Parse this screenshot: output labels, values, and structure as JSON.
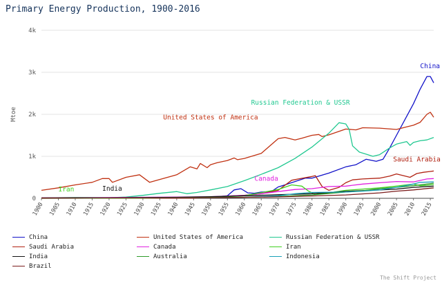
{
  "chart_data": {
    "type": "line",
    "title": "Primary Energy Production, 1900-2016",
    "ylabel": "Mtoe",
    "xlabel": "",
    "xlim": [
      1900,
      2016
    ],
    "ylim": [
      0,
      4000
    ],
    "yticks": [
      0,
      1000,
      2000,
      3000,
      4000
    ],
    "ytick_labels": [
      "0",
      "1k",
      "2k",
      "3k",
      "4k"
    ],
    "xticks": [
      1900,
      1905,
      1910,
      1915,
      1920,
      1925,
      1930,
      1935,
      1940,
      1945,
      1950,
      1955,
      1960,
      1965,
      1970,
      1975,
      1980,
      1985,
      1990,
      1995,
      2000,
      2005,
      2010,
      2015
    ],
    "xtick_labels": [
      "1900",
      "1905",
      "1910",
      "1915",
      "1920",
      "1925",
      "1930",
      "1935",
      "1940",
      "1945",
      "1950",
      "1955",
      "1960",
      "1965",
      "1970",
      "1975",
      "1980",
      "1985",
      "1990",
      "1995",
      "2000",
      "2005",
      "2010",
      "2015"
    ],
    "grid": true,
    "credit": "The Shift Project",
    "series": [
      {
        "name": "China",
        "color": "#1010c8",
        "points": [
          [
            1900,
            5
          ],
          [
            1950,
            20
          ],
          [
            1955,
            60
          ],
          [
            1957,
            200
          ],
          [
            1959,
            230
          ],
          [
            1961,
            130
          ],
          [
            1963,
            120
          ],
          [
            1965,
            150
          ],
          [
            1968,
            160
          ],
          [
            1970,
            270
          ],
          [
            1972,
            320
          ],
          [
            1975,
            400
          ],
          [
            1978,
            480
          ],
          [
            1980,
            480
          ],
          [
            1985,
            600
          ],
          [
            1990,
            750
          ],
          [
            1993,
            800
          ],
          [
            1996,
            930
          ],
          [
            1999,
            880
          ],
          [
            2001,
            930
          ],
          [
            2003,
            1200
          ],
          [
            2005,
            1500
          ],
          [
            2008,
            1950
          ],
          [
            2010,
            2250
          ],
          [
            2012,
            2600
          ],
          [
            2014,
            2900
          ],
          [
            2015,
            2900
          ],
          [
            2016,
            2750
          ]
        ]
      },
      {
        "name": "United States of America",
        "color": "#c03010",
        "points": [
          [
            1900,
            190
          ],
          [
            1905,
            250
          ],
          [
            1910,
            320
          ],
          [
            1915,
            380
          ],
          [
            1918,
            470
          ],
          [
            1920,
            470
          ],
          [
            1921,
            380
          ],
          [
            1925,
            500
          ],
          [
            1929,
            560
          ],
          [
            1932,
            380
          ],
          [
            1935,
            450
          ],
          [
            1940,
            560
          ],
          [
            1944,
            750
          ],
          [
            1946,
            700
          ],
          [
            1947,
            830
          ],
          [
            1949,
            730
          ],
          [
            1950,
            800
          ],
          [
            1952,
            850
          ],
          [
            1955,
            900
          ],
          [
            1957,
            960
          ],
          [
            1958,
            920
          ],
          [
            1960,
            950
          ],
          [
            1965,
            1070
          ],
          [
            1970,
            1420
          ],
          [
            1972,
            1450
          ],
          [
            1975,
            1390
          ],
          [
            1977,
            1430
          ],
          [
            1980,
            1500
          ],
          [
            1982,
            1520
          ],
          [
            1983,
            1470
          ],
          [
            1985,
            1510
          ],
          [
            1990,
            1650
          ],
          [
            1993,
            1630
          ],
          [
            1995,
            1680
          ],
          [
            2000,
            1670
          ],
          [
            2005,
            1640
          ],
          [
            2008,
            1700
          ],
          [
            2010,
            1740
          ],
          [
            2012,
            1810
          ],
          [
            2014,
            2000
          ],
          [
            2015,
            2050
          ],
          [
            2016,
            1930
          ]
        ]
      },
      {
        "name": "Russian Federation & USSR",
        "color": "#20c890",
        "points": [
          [
            1900,
            10
          ],
          [
            1910,
            20
          ],
          [
            1920,
            15
          ],
          [
            1925,
            30
          ],
          [
            1930,
            70
          ],
          [
            1935,
            120
          ],
          [
            1940,
            160
          ],
          [
            1943,
            110
          ],
          [
            1946,
            140
          ],
          [
            1950,
            200
          ],
          [
            1955,
            280
          ],
          [
            1960,
            420
          ],
          [
            1965,
            570
          ],
          [
            1970,
            730
          ],
          [
            1975,
            950
          ],
          [
            1980,
            1220
          ],
          [
            1985,
            1550
          ],
          [
            1988,
            1800
          ],
          [
            1990,
            1770
          ],
          [
            1991,
            1640
          ],
          [
            1992,
            1250
          ],
          [
            1994,
            1100
          ],
          [
            1996,
            1050
          ],
          [
            1998,
            1000
          ],
          [
            2000,
            1040
          ],
          [
            2003,
            1200
          ],
          [
            2005,
            1290
          ],
          [
            2008,
            1350
          ],
          [
            2009,
            1260
          ],
          [
            2010,
            1330
          ],
          [
            2012,
            1370
          ],
          [
            2014,
            1390
          ],
          [
            2016,
            1450
          ]
        ]
      },
      {
        "name": "Saudi Arabia",
        "color": "#b02010",
        "points": [
          [
            1900,
            0
          ],
          [
            1945,
            5
          ],
          [
            1950,
            30
          ],
          [
            1955,
            50
          ],
          [
            1960,
            70
          ],
          [
            1965,
            110
          ],
          [
            1970,
            190
          ],
          [
            1974,
            430
          ],
          [
            1976,
            460
          ],
          [
            1980,
            520
          ],
          [
            1981,
            540
          ],
          [
            1983,
            280
          ],
          [
            1985,
            190
          ],
          [
            1988,
            260
          ],
          [
            1990,
            370
          ],
          [
            1992,
            440
          ],
          [
            1995,
            460
          ],
          [
            2000,
            480
          ],
          [
            2003,
            530
          ],
          [
            2005,
            580
          ],
          [
            2009,
            500
          ],
          [
            2011,
            590
          ],
          [
            2013,
            620
          ],
          [
            2015,
            640
          ],
          [
            2016,
            650
          ]
        ]
      },
      {
        "name": "Canada",
        "color": "#e020e0",
        "points": [
          [
            1900,
            10
          ],
          [
            1920,
            20
          ],
          [
            1940,
            30
          ],
          [
            1950,
            40
          ],
          [
            1960,
            70
          ],
          [
            1965,
            110
          ],
          [
            1970,
            160
          ],
          [
            1975,
            210
          ],
          [
            1980,
            230
          ],
          [
            1985,
            280
          ],
          [
            1990,
            290
          ],
          [
            1995,
            340
          ],
          [
            2000,
            370
          ],
          [
            2005,
            400
          ],
          [
            2010,
            390
          ],
          [
            2014,
            460
          ],
          [
            2016,
            470
          ]
        ]
      },
      {
        "name": "Iran",
        "color": "#40d020",
        "points": [
          [
            1900,
            0
          ],
          [
            1930,
            5
          ],
          [
            1950,
            20
          ],
          [
            1960,
            60
          ],
          [
            1970,
            210
          ],
          [
            1974,
            320
          ],
          [
            1977,
            290
          ],
          [
            1979,
            170
          ],
          [
            1981,
            90
          ],
          [
            1985,
            130
          ],
          [
            1990,
            190
          ],
          [
            1995,
            220
          ],
          [
            2000,
            250
          ],
          [
            2005,
            290
          ],
          [
            2010,
            340
          ],
          [
            2012,
            300
          ],
          [
            2014,
            310
          ],
          [
            2016,
            330
          ]
        ]
      },
      {
        "name": "India",
        "color": "#101010",
        "points": [
          [
            1900,
            10
          ],
          [
            1920,
            15
          ],
          [
            1940,
            25
          ],
          [
            1950,
            40
          ],
          [
            1960,
            60
          ],
          [
            1970,
            85
          ],
          [
            1980,
            110
          ],
          [
            1990,
            165
          ],
          [
            2000,
            200
          ],
          [
            2005,
            220
          ],
          [
            2010,
            260
          ],
          [
            2016,
            290
          ]
        ]
      },
      {
        "name": "Australia",
        "color": "#2c9a28",
        "points": [
          [
            1900,
            5
          ],
          [
            1920,
            10
          ],
          [
            1950,
            20
          ],
          [
            1960,
            25
          ],
          [
            1970,
            45
          ],
          [
            1980,
            80
          ],
          [
            1990,
            150
          ],
          [
            1995,
            180
          ],
          [
            2000,
            230
          ],
          [
            2005,
            260
          ],
          [
            2010,
            300
          ],
          [
            2014,
            340
          ],
          [
            2016,
            360
          ]
        ]
      },
      {
        "name": "Indonesia",
        "color": "#18a0b8",
        "points": [
          [
            1900,
            5
          ],
          [
            1920,
            10
          ],
          [
            1940,
            15
          ],
          [
            1950,
            15
          ],
          [
            1960,
            25
          ],
          [
            1970,
            60
          ],
          [
            1975,
            110
          ],
          [
            1980,
            140
          ],
          [
            1990,
            150
          ],
          [
            1995,
            170
          ],
          [
            2000,
            200
          ],
          [
            2005,
            260
          ],
          [
            2010,
            340
          ],
          [
            2012,
            380
          ],
          [
            2016,
            390
          ]
        ]
      },
      {
        "name": "Brazil",
        "color": "#7a1a1a",
        "points": [
          [
            1900,
            5
          ],
          [
            1950,
            15
          ],
          [
            1960,
            25
          ],
          [
            1970,
            35
          ],
          [
            1980,
            55
          ],
          [
            1990,
            80
          ],
          [
            2000,
            130
          ],
          [
            2005,
            170
          ],
          [
            2010,
            200
          ],
          [
            2016,
            250
          ]
        ]
      }
    ],
    "annotations": [
      {
        "text": "China",
        "year": 2012,
        "value": 3100,
        "color": "#1010c8"
      },
      {
        "text": "Russian Federation & USSR",
        "year": 1962,
        "value": 2230,
        "color": "#20c890"
      },
      {
        "text": "United States of America",
        "year": 1936,
        "value": 1880,
        "color": "#c03010"
      },
      {
        "text": "Saudi Arabia",
        "year": 2004,
        "value": 880,
        "color": "#b02010"
      },
      {
        "text": "Canada",
        "year": 1963,
        "value": 420,
        "color": "#e020e0"
      },
      {
        "text": "Iran",
        "year": 1905,
        "value": 160,
        "color": "#40d020"
      },
      {
        "text": "India",
        "year": 1918,
        "value": 180,
        "color": "#101010"
      }
    ]
  }
}
